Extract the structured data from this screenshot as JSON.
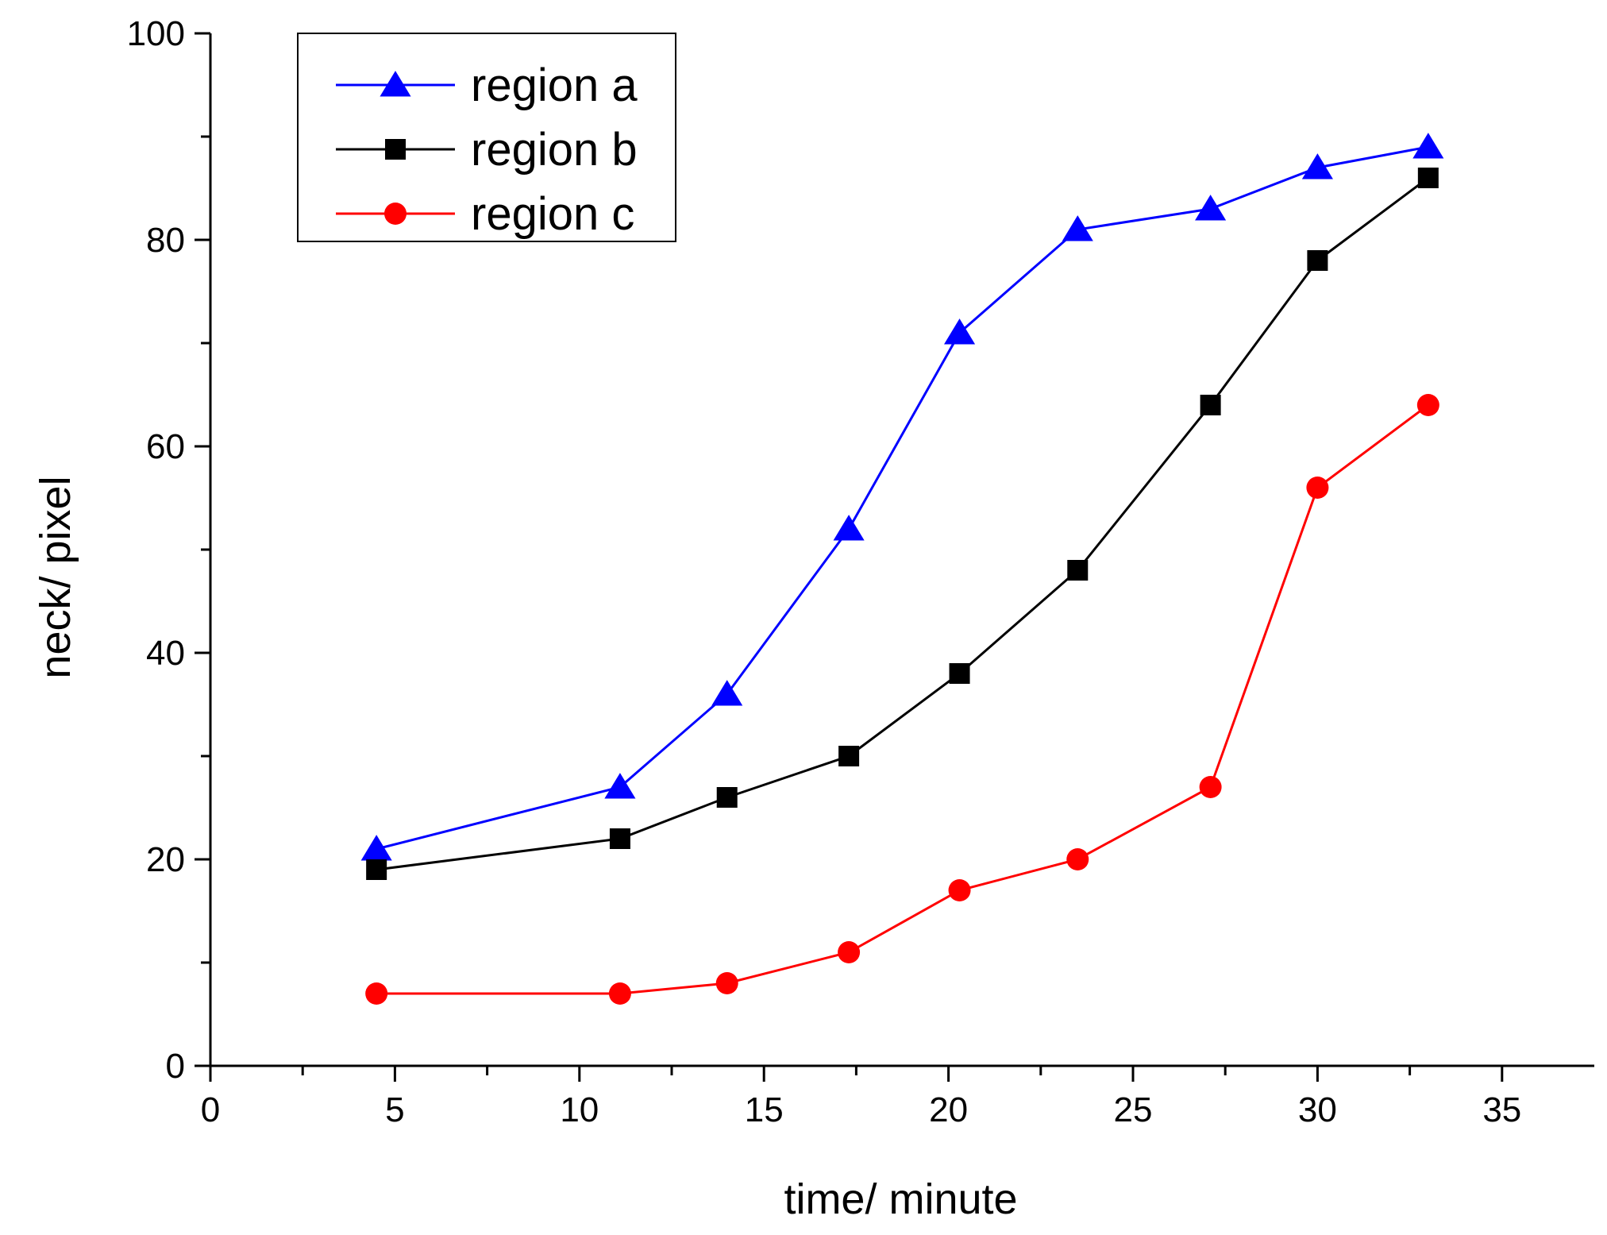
{
  "chart_data": {
    "type": "line",
    "title": "",
    "xlabel": "time/ minute",
    "ylabel": "neck/ pixel",
    "xlim": [
      0,
      37.5
    ],
    "ylim": [
      0,
      100
    ],
    "xticks": [
      0,
      5,
      10,
      15,
      20,
      25,
      30,
      35
    ],
    "yticks": [
      0,
      20,
      40,
      60,
      80,
      100
    ],
    "x": [
      4.5,
      11.1,
      14.0,
      17.3,
      20.3,
      23.5,
      27.1,
      30.0,
      33.0
    ],
    "grid": false,
    "legend_position": "top-left",
    "series": [
      {
        "name": "region a",
        "color": "#0000ff",
        "marker": "triangle",
        "values": [
          21,
          27,
          36,
          52,
          71,
          81,
          83,
          87,
          89
        ]
      },
      {
        "name": "region b",
        "color": "#000000",
        "marker": "square",
        "values": [
          19,
          22,
          26,
          30,
          38,
          48,
          64,
          78,
          86
        ]
      },
      {
        "name": "region c",
        "color": "#ff0000",
        "marker": "circle",
        "values": [
          7,
          7,
          8,
          11,
          17,
          20,
          27,
          56,
          64
        ]
      }
    ]
  }
}
